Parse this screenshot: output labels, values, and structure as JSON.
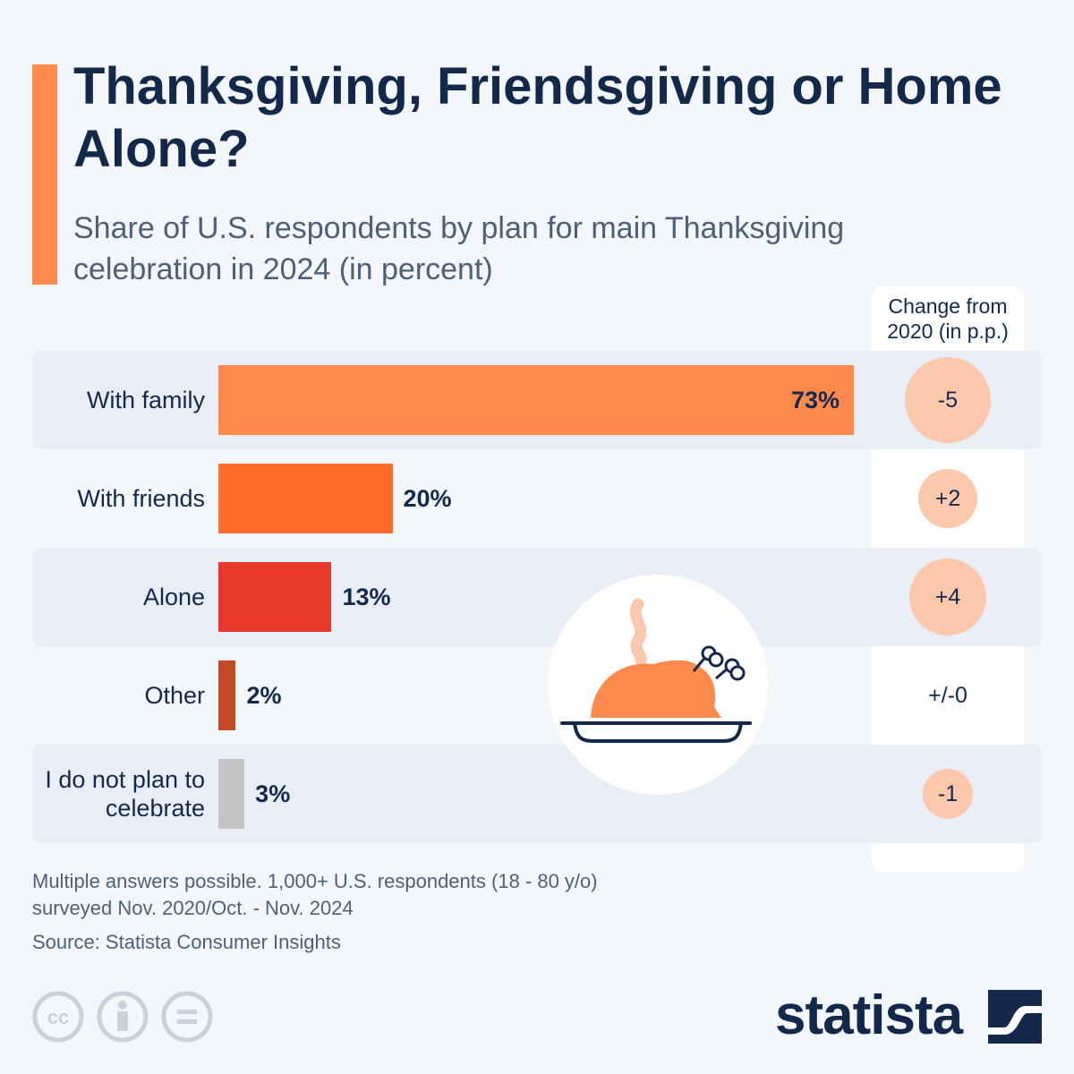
{
  "title": "Thanksgiving, Friendsgiving or Home Alone?",
  "subtitle": "Share of U.S. respondents by plan for main Thanksgiving celebration in 2024 (in percent)",
  "change_header": "Change from 2020 (in p.p.)",
  "chart_data": {
    "type": "bar",
    "orientation": "horizontal",
    "title": "Thanksgiving, Friendsgiving or Home Alone?",
    "subtitle": "Share of U.S. respondents by plan for main Thanksgiving celebration in 2024 (in percent)",
    "categories": [
      "With family",
      "With friends",
      "Alone",
      "Other",
      "I do not plan to celebrate"
    ],
    "values": [
      73,
      20,
      13,
      2,
      3
    ],
    "value_labels": [
      "73%",
      "20%",
      "13%",
      "2%",
      "3%"
    ],
    "bar_colors": [
      "#ff8a4c",
      "#ff6b2a",
      "#e8382b",
      "#c14a24",
      "#c4c4c4"
    ],
    "change_from_2020": [
      -5,
      2,
      4,
      0,
      -1
    ],
    "change_labels": [
      "-5",
      "+2",
      "+4",
      "+/-0",
      "-1"
    ],
    "xlim": [
      0,
      100
    ],
    "grid": false,
    "legend": "none"
  },
  "notes": {
    "line1": "Multiple answers possible. 1,000+ U.S. respondents (18 - 80 y/o)",
    "line2": "surveyed Nov. 2020/Oct. - Nov. 2024",
    "source": "Source: Statista Consumer Insights"
  },
  "brand": {
    "name": "statista"
  },
  "icons": [
    "creative-commons-icon",
    "attribution-icon",
    "no-derivatives-icon",
    "statista-logo-icon",
    "turkey-icon"
  ],
  "colors": {
    "accent": "#ff8a4c",
    "text": "#13294b",
    "muted": "#4e6075",
    "change_circle": "#fcc8ac"
  }
}
